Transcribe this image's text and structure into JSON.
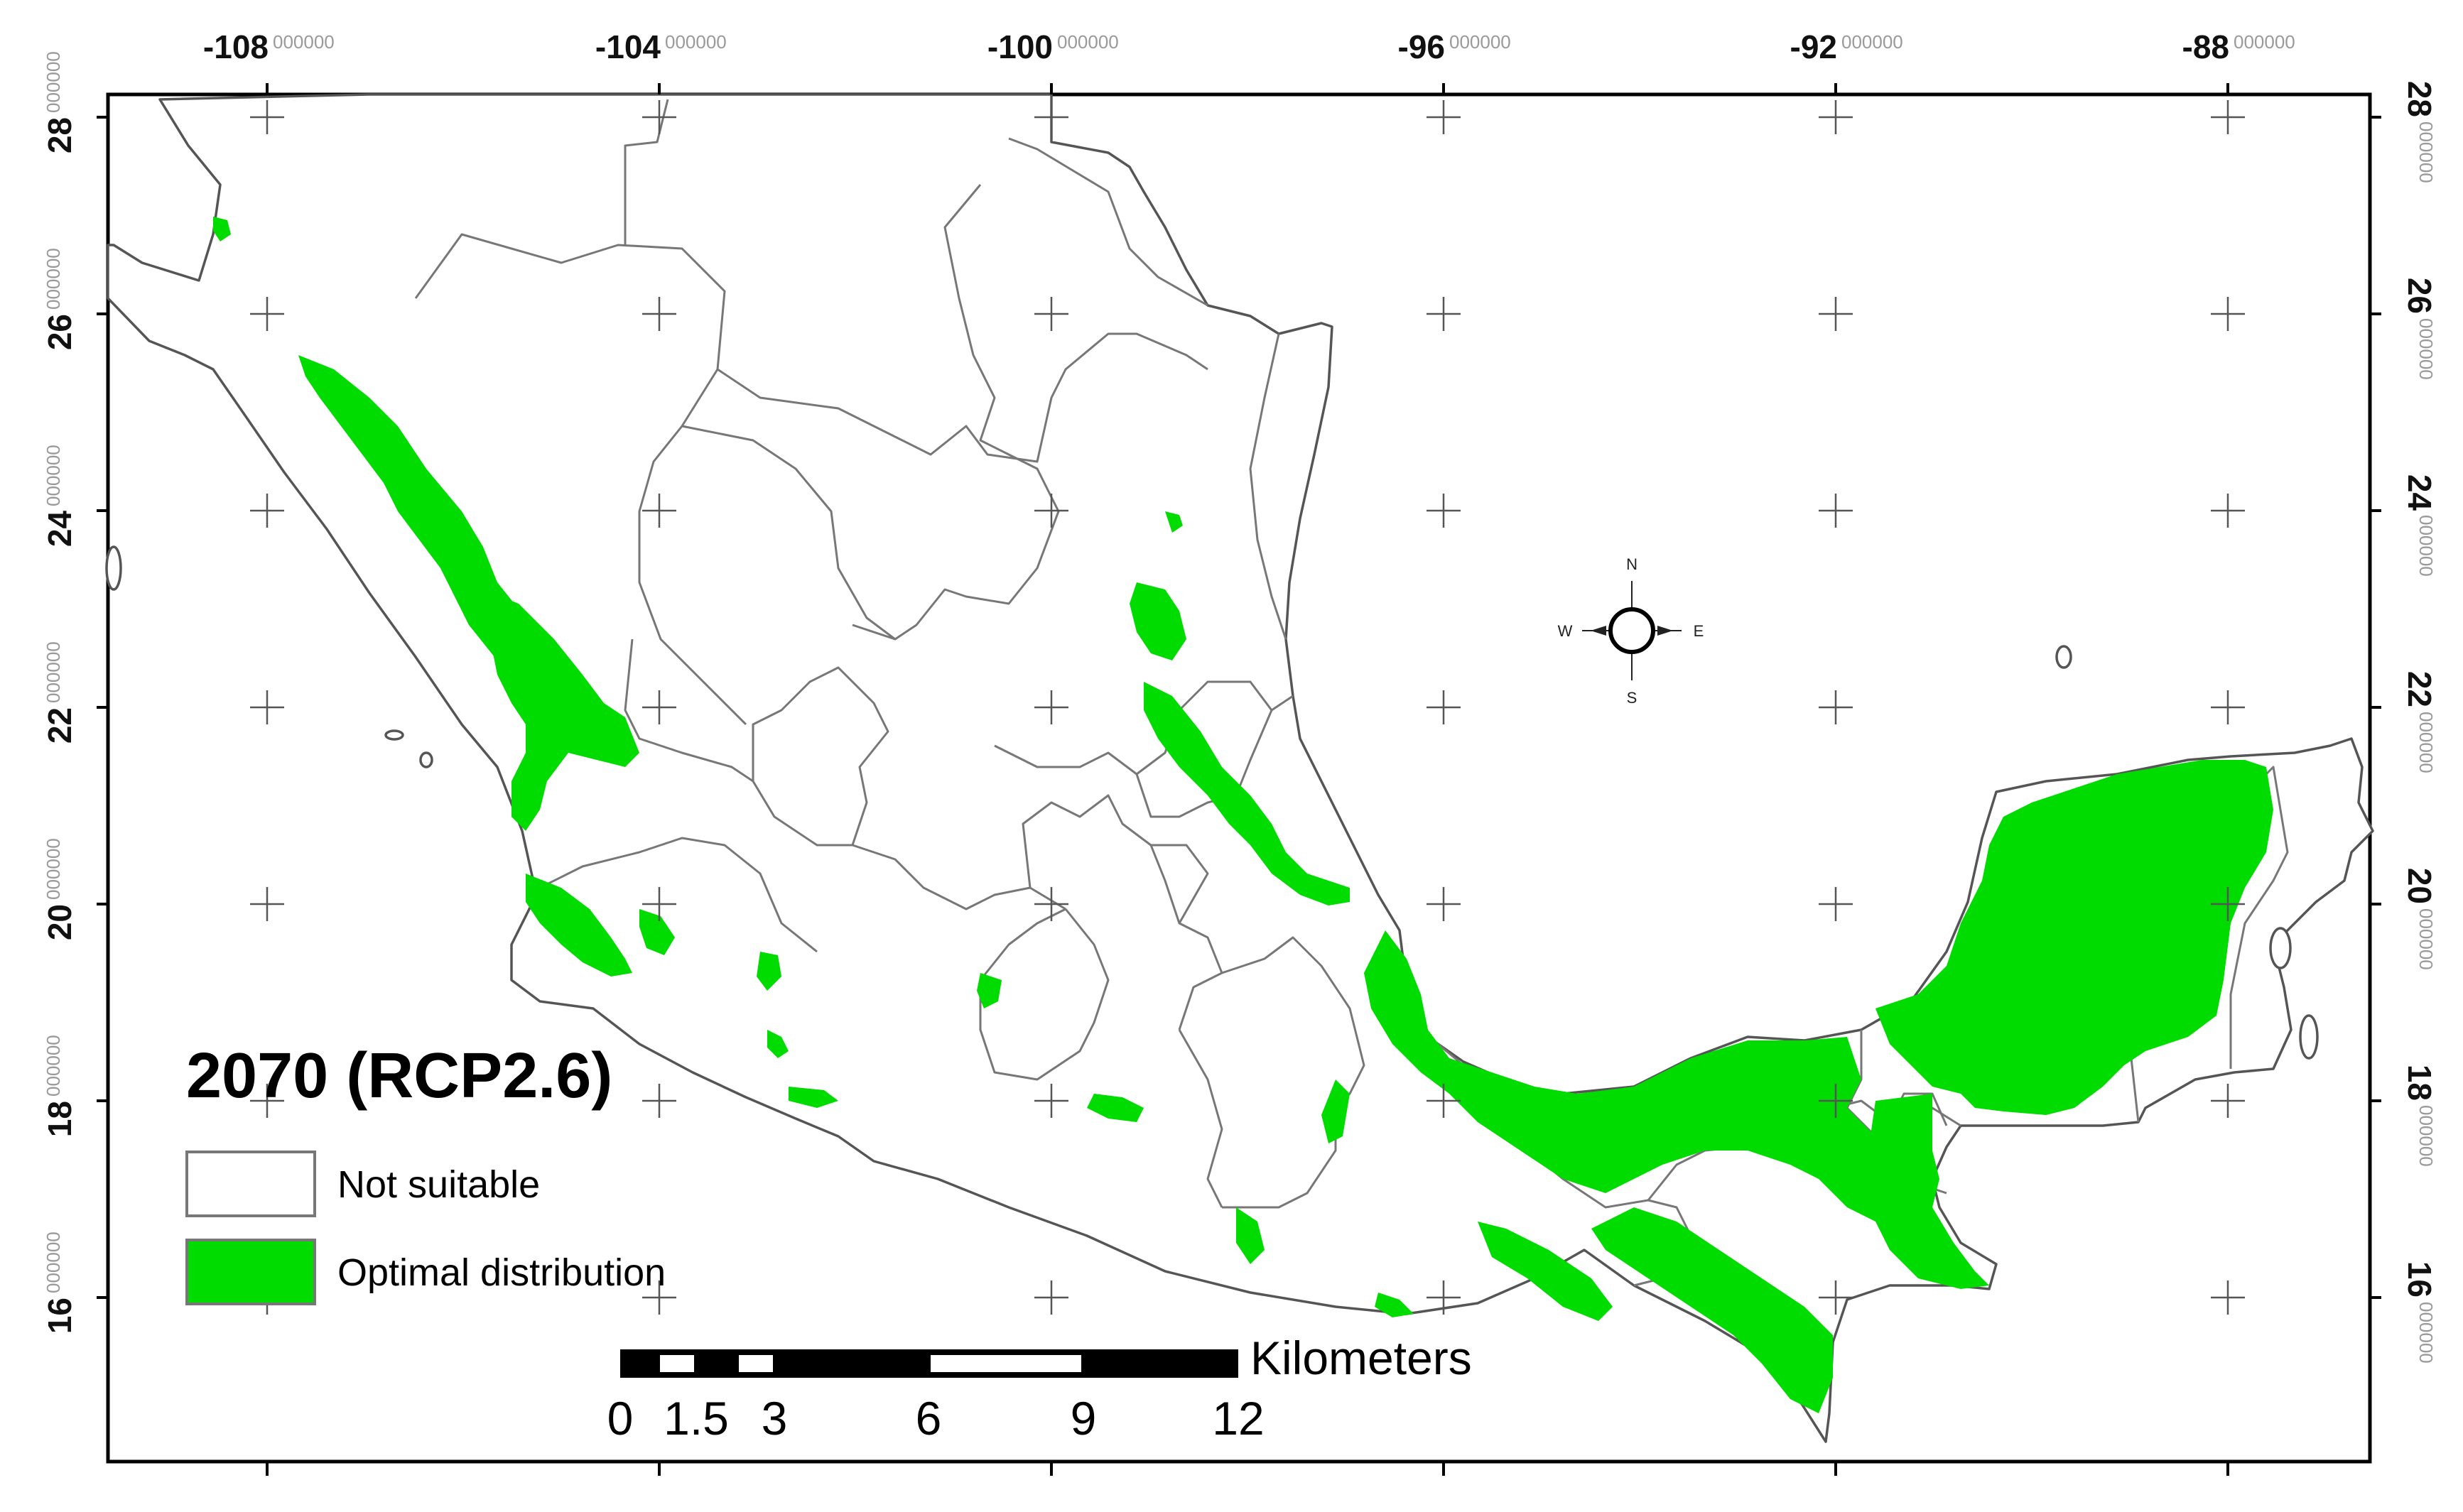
{
  "map": {
    "title": "2070 (RCP2.6)",
    "colors": {
      "optimal": "#00dc00",
      "not_suitable": "#ffffff",
      "outline": "#555555"
    },
    "longitude_ticks": [
      {
        "value": -108,
        "major": "-108",
        "minor": "000000"
      },
      {
        "value": -104,
        "major": "-104",
        "minor": "000000"
      },
      {
        "value": -100,
        "major": "-100",
        "minor": "000000"
      },
      {
        "value": -96,
        "major": "-96",
        "minor": "000000"
      },
      {
        "value": -92,
        "major": "-92",
        "minor": "000000"
      },
      {
        "value": -88,
        "major": "-88",
        "minor": "000000"
      }
    ],
    "latitude_ticks": [
      {
        "value": 28,
        "major": "28",
        "minor": "000000"
      },
      {
        "value": 26,
        "major": "26",
        "minor": "000000"
      },
      {
        "value": 24,
        "major": "24",
        "minor": "000000"
      },
      {
        "value": 22,
        "major": "22",
        "minor": "000000"
      },
      {
        "value": 20,
        "major": "20",
        "minor": "000000"
      },
      {
        "value": 18,
        "major": "18",
        "minor": "000000"
      },
      {
        "value": 16,
        "major": "16",
        "minor": "000000"
      }
    ],
    "legend": [
      {
        "label": "Not suitable",
        "color": "#ffffff"
      },
      {
        "label": "Optimal distribution",
        "color": "#00dc00"
      }
    ],
    "scale_bar": {
      "unit": "Kilometers",
      "labels": [
        "0",
        "1.5",
        "3",
        "6",
        "9",
        "12"
      ]
    },
    "compass": {
      "n": "N",
      "s": "S",
      "e": "E",
      "w": "W"
    }
  }
}
